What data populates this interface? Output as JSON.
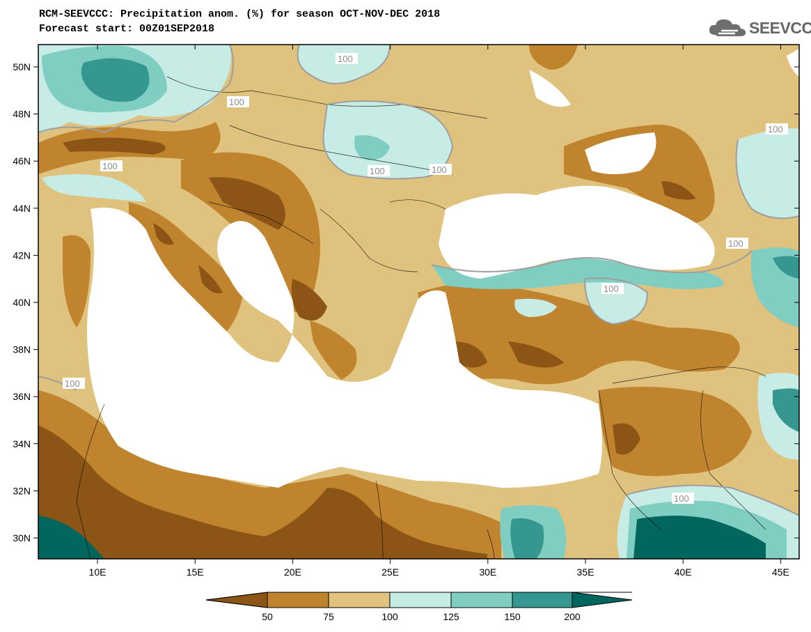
{
  "title": {
    "line1": "RCM-SEEVCCC: Precipitation anom. (%) for season OCT-NOV-DEC 2018",
    "line2": "Forecast start: 00Z01SEP2018"
  },
  "logo": {
    "text": "SEEVCCC",
    "icon": "cloud-icon"
  },
  "map": {
    "lat_ticks": [
      "50N",
      "48N",
      "46N",
      "44N",
      "42N",
      "40N",
      "38N",
      "36N",
      "34N",
      "32N",
      "30N"
    ],
    "lon_ticks": [
      "10E",
      "15E",
      "20E",
      "25E",
      "30E",
      "35E",
      "40E",
      "45E"
    ],
    "contour_labels": [
      "100",
      "100",
      "100",
      "100",
      "100",
      "100",
      "100",
      "100",
      "100",
      "100",
      "100"
    ]
  },
  "colorbar": {
    "labels": [
      "50",
      "75",
      "100",
      "125",
      "150",
      "200"
    ],
    "colors": [
      "#8c5516",
      "#c1842e",
      "#dfc27d",
      "#c7ebe5",
      "#80cdc1",
      "#35978f",
      "#01665e"
    ]
  },
  "palette": {
    "very_dry": "#8c5516",
    "dry": "#c1842e",
    "slightly_dry": "#dfc27d",
    "slightly_wet": "#c7ebe5",
    "wet": "#80cdc1",
    "very_wet": "#35978f",
    "extreme_wet": "#01665e",
    "sea": "#ffffff"
  }
}
